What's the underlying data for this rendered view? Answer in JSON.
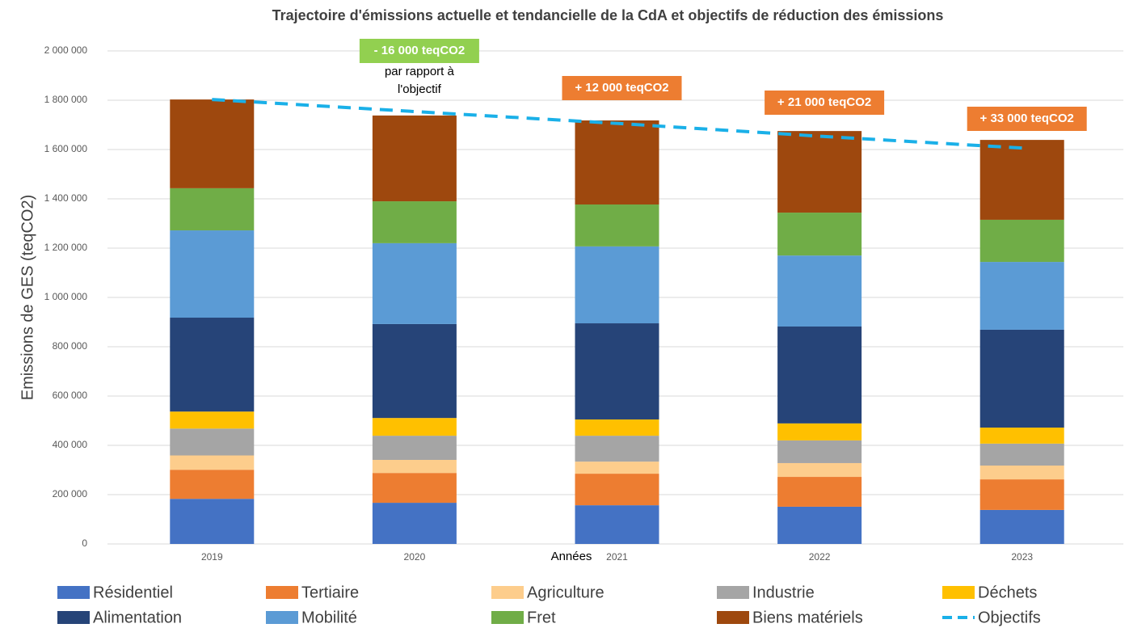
{
  "chart_data": {
    "type": "bar",
    "stacked": true,
    "title": "Trajectoire d'émissions actuelle et tendancielle de la CdA et objectifs de réduction des émissions",
    "x_label": "Années",
    "y_label": "Emissions de GES (teqCO2)",
    "categories": [
      "2019",
      "2020",
      "2021",
      "2022",
      "2023"
    ],
    "series": [
      {
        "name": "Résidentiel",
        "color": "#4472c4",
        "values": [
          183000,
          167000,
          157000,
          151000,
          138000
        ]
      },
      {
        "name": "Tertiaire",
        "color": "#ed7d31",
        "values": [
          118000,
          121000,
          128000,
          121000,
          124000
        ]
      },
      {
        "name": "Agriculture",
        "color": "#fdcd8c",
        "values": [
          58000,
          53000,
          49000,
          56000,
          56000
        ]
      },
      {
        "name": "Industrie",
        "color": "#a5a5a5",
        "values": [
          109000,
          98000,
          105000,
          92000,
          89000
        ]
      },
      {
        "name": "Déchets",
        "color": "#ffc000",
        "values": [
          69000,
          72000,
          66000,
          69000,
          65000
        ]
      },
      {
        "name": "Alimentation",
        "color": "#264478",
        "values": [
          381000,
          381000,
          390000,
          393000,
          397000
        ]
      },
      {
        "name": "Mobilité",
        "color": "#5b9bd5",
        "values": [
          354000,
          328000,
          312000,
          288000,
          275000
        ]
      },
      {
        "name": "Fret",
        "color": "#70ad47",
        "values": [
          171000,
          170000,
          170000,
          174000,
          171000
        ]
      },
      {
        "name": "Biens matériels",
        "color": "#9e480e",
        "values": [
          360000,
          348000,
          341000,
          331000,
          324000
        ]
      }
    ],
    "lines": [
      {
        "name": "Objectifs",
        "color": "#1ab0e8",
        "dashed": true,
        "values": [
          1803000,
          1754000,
          1706000,
          1654000,
          1606000
        ]
      }
    ],
    "annotations": [
      {
        "category": "2020",
        "text": "- 16 000 teqCO2",
        "color": "#92d050",
        "note": [
          "par rapport à",
          "l'objectif"
        ]
      },
      {
        "category": "2021",
        "text": "+ 12 000 teqCO2",
        "color": "#ed7d31"
      },
      {
        "category": "2022",
        "text": "+ 21 000 teqCO2",
        "color": "#ed7d31"
      },
      {
        "category": "2023",
        "text": "+ 33 000 teqCO2",
        "color": "#ed7d31"
      }
    ],
    "ylim": [
      0,
      2000000
    ],
    "yticks": [
      0,
      {
        "value": 200000,
        "label": "200 000"
      },
      {
        "value": 400000,
        "label": "400 000"
      },
      {
        "value": 600000,
        "label": "600 000"
      },
      {
        "value": 800000,
        "label": "800 000"
      },
      {
        "value": 1000000,
        "label": "1 000 000"
      },
      {
        "value": 1200000,
        "label": "1 200 000"
      },
      {
        "value": 1400000,
        "label": "1 400 000"
      },
      {
        "value": 1600000,
        "label": "1 600 000"
      },
      {
        "value": 1800000,
        "label": "1 800 000"
      },
      {
        "value": 2000000,
        "label": "2 000 000"
      }
    ],
    "grid": true,
    "legend": "bottom"
  }
}
